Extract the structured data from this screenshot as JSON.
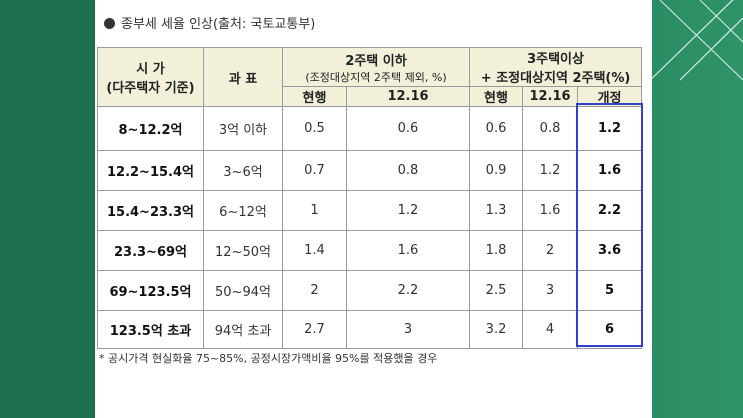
{
  "title": "종부세 세율 인상(출처: 국토교통부)",
  "table": {
    "headers": {
      "price": "시 가",
      "price_note": "(다주택자 기준)",
      "tax_base": "과 표",
      "group1": "2주택 이하",
      "group1_note": "(조정대상지역 2주택 제외, %)",
      "group2": "3주택이상",
      "group2_note": "+ 조정대상지역 2주택(%)",
      "sub": [
        "현행",
        "12.16",
        "현행",
        "12.16",
        "개정"
      ]
    },
    "rows": [
      [
        "8~12.2억",
        "3억 이하",
        0.5,
        0.6,
        0.6,
        0.8,
        1.2
      ],
      [
        "12.2~15.4억",
        "3~6억",
        0.7,
        0.8,
        0.9,
        1.2,
        1.6
      ],
      [
        "15.4~23.3억",
        "6~12억",
        1,
        1.2,
        1.3,
        1.6,
        2.2
      ],
      [
        "23.3~69억",
        "12~50억",
        1.4,
        1.6,
        1.8,
        2,
        3.6
      ],
      [
        "69~123.5억",
        "50~94억",
        2,
        2.2,
        2.5,
        3,
        5
      ],
      [
        "123.5억 초과",
        "94억 초과",
        2.7,
        3,
        3.2,
        4,
        6
      ]
    ]
  },
  "footnote": "* 공시가격 현실화율 75~85%, 공정시장가액비율 95%를 적용했을 경우"
}
